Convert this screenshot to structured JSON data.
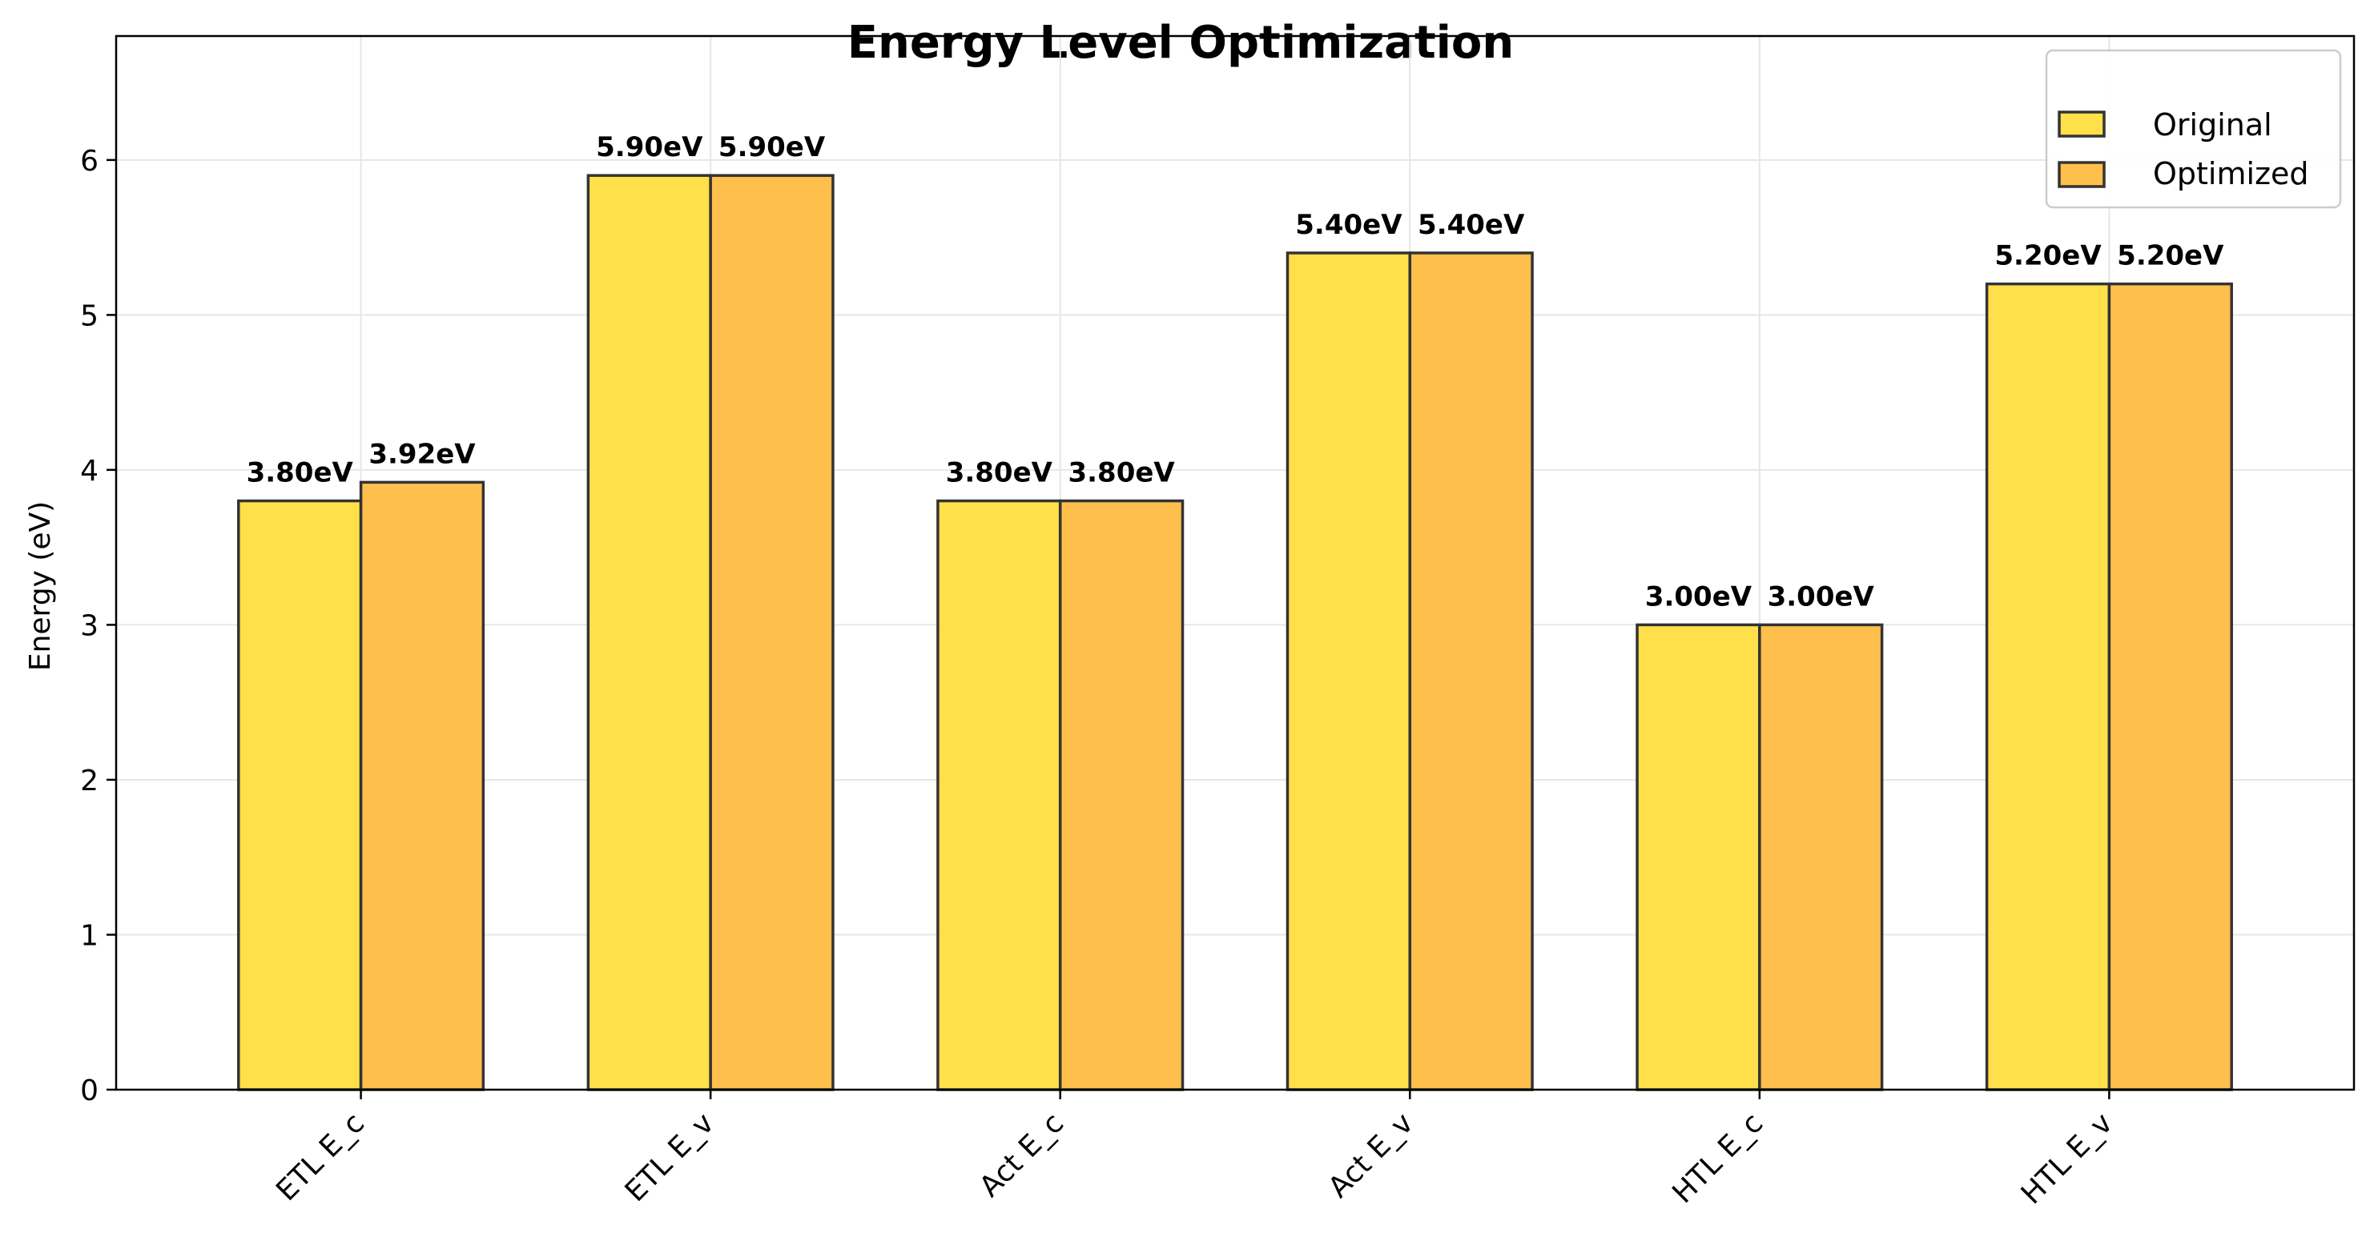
{
  "chart_data": {
    "type": "bar",
    "title": "Energy Level Optimization",
    "xlabel": "",
    "ylabel": "Energy (eV)",
    "categories": [
      "ETL E_c",
      "ETL E_v",
      "Act E_c",
      "Act E_v",
      "HTL E_c",
      "HTL E_v"
    ],
    "series": [
      {
        "name": "Original",
        "color": "#FFE04A",
        "values": [
          3.8,
          5.9,
          3.8,
          5.4,
          3.0,
          5.2
        ],
        "labels": [
          "3.80eV",
          "5.90eV",
          "3.80eV",
          "5.40eV",
          "3.00eV",
          "5.20eV"
        ]
      },
      {
        "name": "Optimized",
        "color": "#FFBF4D",
        "values": [
          3.92,
          5.9,
          3.8,
          5.4,
          3.0,
          5.2
        ],
        "labels": [
          "3.92eV",
          "5.90eV",
          "3.80eV",
          "5.40eV",
          "3.00eV",
          "5.20eV"
        ]
      }
    ],
    "ylim": [
      0,
      6.8
    ],
    "yticks": [
      0,
      1,
      2,
      3,
      4,
      5,
      6
    ],
    "ytick_labels": [
      "0",
      "1",
      "2",
      "3",
      "4",
      "5",
      "6"
    ],
    "grid": true,
    "legend_position": "top-right",
    "xtick_rotation": 45
  }
}
